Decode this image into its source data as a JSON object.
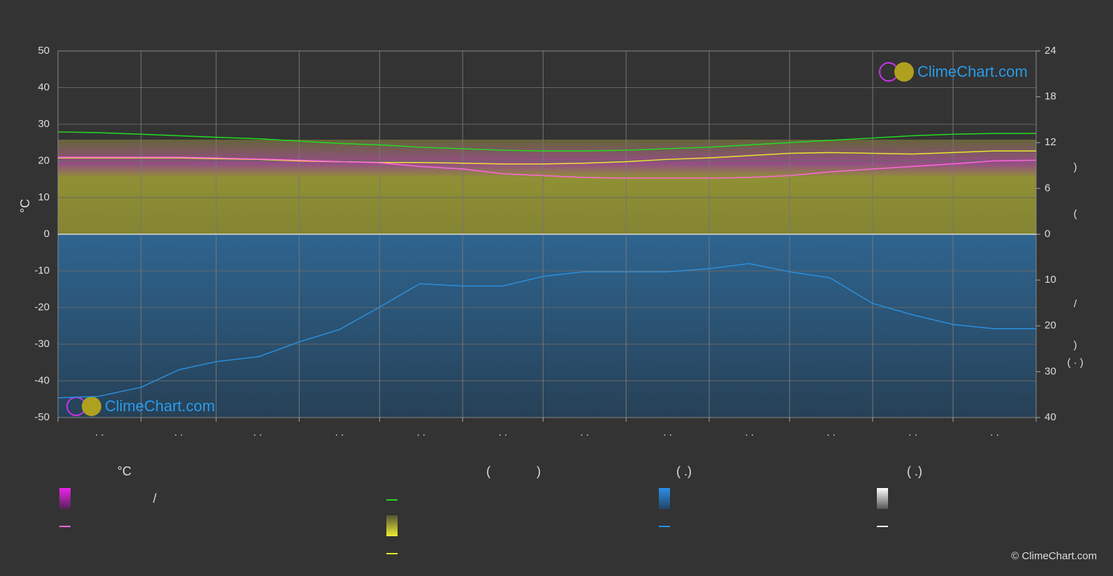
{
  "chart_data": {
    "type": "line",
    "y_label": "°C",
    "xlim": [
      0,
      365
    ],
    "xticks": [
      0,
      31,
      59,
      90,
      120,
      151,
      181,
      212,
      243,
      273,
      304,
      334,
      365
    ],
    "month_labels": [
      ". .",
      ". .",
      ". .",
      ". .",
      ". .",
      ". .",
      ". .",
      ". .",
      ". .",
      ". .",
      ". .",
      ". ."
    ],
    "ylim": [
      -50,
      50
    ],
    "yticks": [
      -50,
      -40,
      -30,
      -20,
      -10,
      0,
      10,
      20,
      30,
      40,
      50
    ],
    "y2lim": [
      0,
      24
    ],
    "y2ticks": [
      0,
      6,
      12,
      18,
      24
    ],
    "y3lim": [
      0,
      40
    ],
    "y3ticks": [
      10,
      20,
      30,
      40
    ],
    "y2_label_parts": [
      ")",
      "(",
      "/",
      ")",
      "( · )"
    ],
    "grid": true,
    "x": [
      0,
      15,
      31,
      45,
      59,
      75,
      90,
      105,
      120,
      135,
      151,
      166,
      181,
      196,
      212,
      227,
      243,
      258,
      273,
      288,
      304,
      319,
      334,
      349,
      365
    ],
    "series": [
      {
        "color": "#22dd22",
        "axis": "y2",
        "values": [
          13.4,
          13.3,
          13.1,
          12.9,
          12.7,
          12.5,
          12.2,
          11.9,
          11.7,
          11.4,
          11.2,
          11.0,
          10.9,
          10.9,
          11.0,
          11.2,
          11.4,
          11.7,
          12.0,
          12.3,
          12.6,
          12.9,
          13.1,
          13.2,
          13.2
        ]
      },
      {
        "color": "#e8e830",
        "axis": "y2",
        "values": [
          10.0,
          10.0,
          10.0,
          10.0,
          9.9,
          9.8,
          9.6,
          9.5,
          9.4,
          9.4,
          9.3,
          9.2,
          9.2,
          9.3,
          9.5,
          9.8,
          10.0,
          10.3,
          10.6,
          10.7,
          10.6,
          10.5,
          10.7,
          10.9,
          10.9
        ]
      },
      {
        "color": "#ff66dd",
        "values": [
          21,
          21,
          21,
          21,
          20.8,
          20.5,
          20.2,
          19.8,
          19.5,
          18.5,
          17.8,
          16.5,
          16,
          15.5,
          15.3,
          15.3,
          15.3,
          15.5,
          16,
          17,
          17.8,
          18.5,
          19.2,
          20,
          20.2
        ]
      },
      {
        "color": "#2a8fdc",
        "axis": "y3",
        "values": [
          35.7,
          35.4,
          33.4,
          29.6,
          27.8,
          26.7,
          23.5,
          20.8,
          15.9,
          10.8,
          11.3,
          11.3,
          9.2,
          8.2,
          8.2,
          8.2,
          7.5,
          6.4,
          8.2,
          9.5,
          15.1,
          17.6,
          19.7,
          20.6,
          20.6
        ]
      }
    ],
    "legend_texts": [
      "°C",
      "(",
      ")",
      "( .)",
      "( .)",
      "/"
    ],
    "watermark": "ClimeChart.com",
    "copyright": "© ClimeChart.com"
  }
}
